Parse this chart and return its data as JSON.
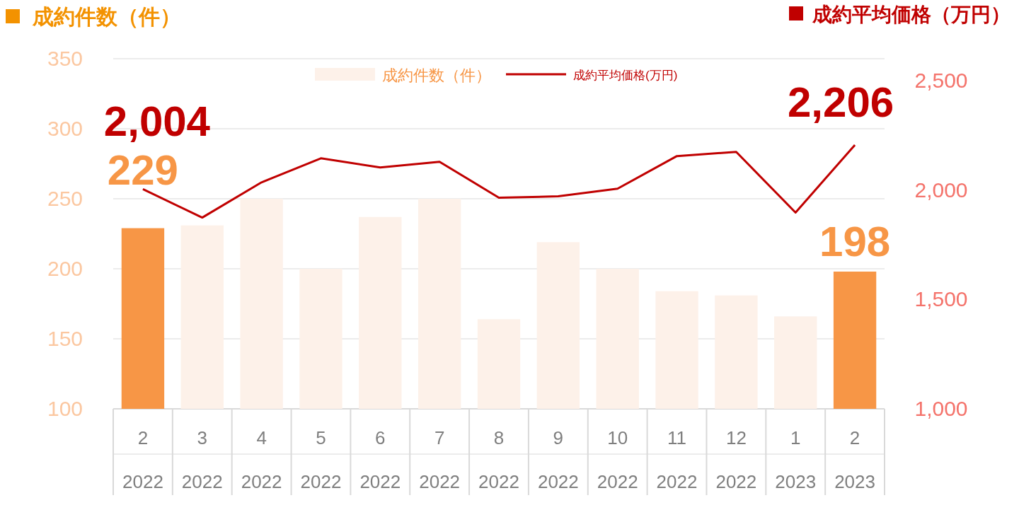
{
  "chart_data": {
    "type": "bar",
    "ylabel": "成約件数（件）",
    "y2label": "成約平均価格（万円）",
    "categories": [
      "2\n2022",
      "3\n2022",
      "4\n2022",
      "5\n2022",
      "6\n2022",
      "7\n2022",
      "8\n2022",
      "9\n2022",
      "10\n2022",
      "11\n2022",
      "12\n2022",
      "1\n2023",
      "2\n2023"
    ],
    "series": [
      {
        "name": "成約件数（件）",
        "color": "#fdf1e9",
        "colors": [
          "#f79646",
          "#fdf1e9",
          "#fdf1e9",
          "#fdf1e9",
          "#fdf1e9",
          "#fdf1e9",
          "#fdf1e9",
          "#fdf1e9",
          "#fdf1e9",
          "#fdf1e9",
          "#fdf1e9",
          "#fdf1e9",
          "#f79646"
        ],
        "values": [
          229,
          231,
          250,
          200,
          237,
          250,
          164,
          219,
          200,
          184,
          181,
          166,
          198
        ],
        "value_labels": [
          "229",
          null,
          null,
          null,
          null,
          null,
          null,
          null,
          null,
          null,
          null,
          null,
          "198"
        ]
      },
      {
        "name": "成約平均価格(万円)",
        "type": "line",
        "axis": "y2",
        "color": "#c00000",
        "values": [
          2004,
          1874,
          2035,
          2145,
          2103,
          2129,
          1965,
          1971,
          2006,
          2155,
          2174,
          1897,
          2206
        ],
        "value_labels": [
          "2,004",
          null,
          null,
          null,
          null,
          null,
          null,
          null,
          null,
          null,
          null,
          null,
          "2,206"
        ]
      }
    ],
    "ylim": [
      100,
      350
    ],
    "yticks": [
      100,
      150,
      200,
      250,
      300,
      350
    ],
    "y2lim": [
      1000,
      2600
    ],
    "y2ticks": [
      {
        "value": 1000,
        "label": "1,000"
      },
      {
        "value": 1500,
        "label": "1,500"
      },
      {
        "value": 2000,
        "label": "2,000"
      },
      {
        "value": 2500,
        "label": "2,500"
      }
    ],
    "grid": "y",
    "legend": "top",
    "marker": "none"
  }
}
